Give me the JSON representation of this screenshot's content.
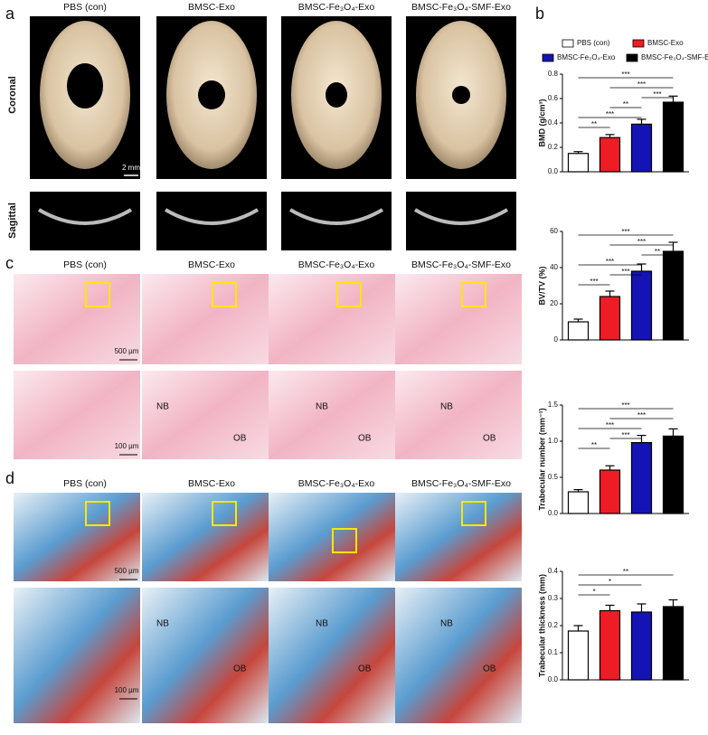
{
  "panel_labels": [
    "a",
    "b",
    "c",
    "d"
  ],
  "photo_columns": [
    "PBS (con)",
    "BMSC-Exo",
    "BMSC-Fe₃O₄-Exo",
    "BMSC-Fe₃O₄-SMF-Exo"
  ],
  "row_labels": [
    "Coronal",
    "Sagittal"
  ],
  "scale_bars": [
    "2 mm",
    "500 µm",
    "100 µm"
  ],
  "tissue_labels": [
    "NB",
    "OB"
  ],
  "chart_data": [
    {
      "type": "bar",
      "y_label": "BMD (g/cm³)",
      "categories": [
        "PBS (con)",
        "BMSC-Exo",
        "BMSC-Fe₃O₄-Exo",
        "BMSC-Fe₃O₄-SMF-Exo"
      ],
      "colors": [
        "#ffffff",
        "#ee1c25",
        "#1414b4",
        "#000000"
      ],
      "values": [
        0.15,
        0.28,
        0.39,
        0.57
      ],
      "errors": [
        0.015,
        0.025,
        0.04,
        0.05
      ],
      "ylim": [
        0,
        0.8
      ],
      "yticks": [
        {
          "value": 0,
          "label": "0.0"
        },
        0.2,
        0.4,
        0.6,
        0.8
      ],
      "brackets": [
        {
          "label": "***",
          "between": [
            "PBS (con)",
            "BMSC-Fe₃O₄-SMF-Exo"
          ]
        },
        {
          "label": "***",
          "between": [
            "BMSC-Exo",
            "BMSC-Fe₃O₄-SMF-Exo"
          ]
        },
        {
          "label": "***",
          "between": [
            "BMSC-Fe₃O₄-Exo",
            "BMSC-Fe₃O₄-SMF-Exo"
          ]
        },
        {
          "label": "**",
          "between": [
            "BMSC-Exo",
            "BMSC-Fe₃O₄-Exo"
          ]
        },
        {
          "label": "***",
          "between": [
            "PBS (con)",
            "BMSC-Fe₃O₄-Exo"
          ]
        },
        {
          "label": "**",
          "between": [
            "PBS (con)",
            "BMSC-Exo"
          ]
        }
      ]
    },
    {
      "type": "bar",
      "y_label": "BV/TV (%)",
      "categories": [
        "PBS (con)",
        "BMSC-Exo",
        "BMSC-Fe₃O₄-Exo",
        "BMSC-Fe₃O₄-SMF-Exo"
      ],
      "colors": [
        "#ffffff",
        "#ee1c25",
        "#1414b4",
        "#000000"
      ],
      "values": [
        10,
        24,
        38,
        49
      ],
      "errors": [
        1.5,
        3,
        4,
        5
      ],
      "ylim": [
        0,
        60
      ],
      "yticks": [
        0,
        20,
        40,
        60
      ],
      "brackets": [
        {
          "label": "***",
          "between": [
            "PBS (con)",
            "BMSC-Fe₃O₄-SMF-Exo"
          ]
        },
        {
          "label": "***",
          "between": [
            "BMSC-Exo",
            "BMSC-Fe₃O₄-SMF-Exo"
          ]
        },
        {
          "label": "**",
          "between": [
            "BMSC-Fe₃O₄-Exo",
            "BMSC-Fe₃O₄-SMF-Exo"
          ]
        },
        {
          "label": "***",
          "between": [
            "PBS (con)",
            "BMSC-Fe₃O₄-Exo"
          ]
        },
        {
          "label": "***",
          "between": [
            "BMSC-Exo",
            "BMSC-Fe₃O₄-Exo"
          ]
        },
        {
          "label": "***",
          "between": [
            "PBS (con)",
            "BMSC-Exo"
          ]
        }
      ]
    },
    {
      "type": "bar",
      "y_label": "Trabecular number (mm⁻¹)",
      "categories": [
        "PBS (con)",
        "BMSC-Exo",
        "BMSC-Fe₃O₄-Exo",
        "BMSC-Fe₃O₄-SMF-Exo"
      ],
      "colors": [
        "#ffffff",
        "#ee1c25",
        "#1414b4",
        "#000000"
      ],
      "values": [
        0.3,
        0.6,
        0.98,
        1.07
      ],
      "errors": [
        0.03,
        0.06,
        0.1,
        0.1
      ],
      "ylim": [
        0,
        1.5
      ],
      "yticks": [
        {
          "value": 0,
          "label": "0.0"
        },
        0.5,
        {
          "value": 1,
          "label": "1.0"
        },
        1.5
      ],
      "brackets": [
        {
          "label": "***",
          "between": [
            "PBS (con)",
            "BMSC-Fe₃O₄-SMF-Exo"
          ]
        },
        {
          "label": "***",
          "between": [
            "BMSC-Exo",
            "BMSC-Fe₃O₄-SMF-Exo"
          ]
        },
        {
          "label": "***",
          "between": [
            "PBS (con)",
            "BMSC-Fe₃O₄-Exo"
          ]
        },
        {
          "label": "***",
          "between": [
            "BMSC-Exo",
            "BMSC-Fe₃O₄-Exo"
          ]
        },
        {
          "label": "**",
          "between": [
            "PBS (con)",
            "BMSC-Exo"
          ]
        }
      ]
    },
    {
      "type": "bar",
      "y_label": "Trabecular thickness (mm)",
      "categories": [
        "PBS (con)",
        "BMSC-Exo",
        "BMSC-Fe₃O₄-Exo",
        "BMSC-Fe₃O₄-SMF-Exo"
      ],
      "colors": [
        "#ffffff",
        "#ee1c25",
        "#1414b4",
        "#000000"
      ],
      "values": [
        0.18,
        0.255,
        0.25,
        0.27
      ],
      "errors": [
        0.02,
        0.02,
        0.03,
        0.025
      ],
      "ylim": [
        0,
        0.4
      ],
      "yticks": [
        {
          "value": 0,
          "label": "0.0"
        },
        0.1,
        0.2,
        0.3,
        0.4
      ],
      "brackets": [
        {
          "label": "**",
          "between": [
            "PBS (con)",
            "BMSC-Fe₃O₄-SMF-Exo"
          ]
        },
        {
          "label": "*",
          "between": [
            "PBS (con)",
            "BMSC-Fe₃O₄-Exo"
          ]
        },
        {
          "label": "*",
          "between": [
            "PBS (con)",
            "BMSC-Exo"
          ]
        }
      ]
    }
  ]
}
